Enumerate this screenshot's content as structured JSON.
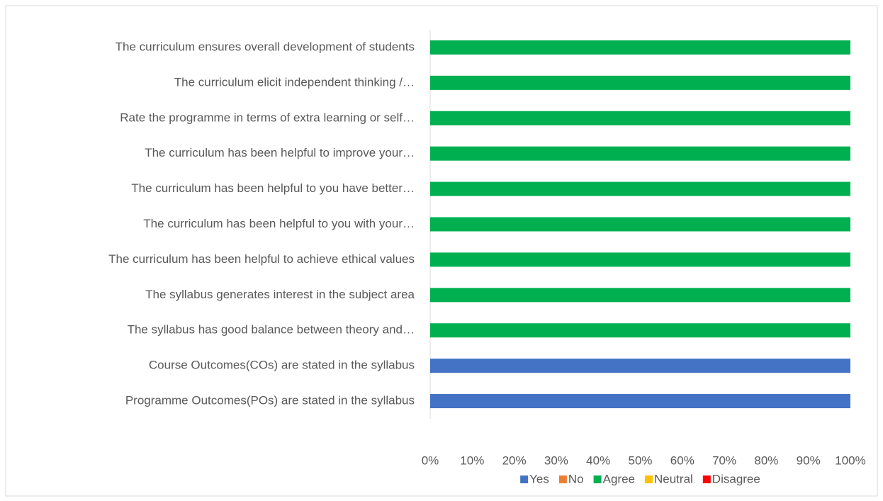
{
  "chart_data": {
    "type": "stacked_bar_horizontal_percent",
    "categories": [
      "The curriculum ensures overall development of students",
      "The curriculum elicit independent thinking /…",
      "Rate the programme in terms of extra learning or self…",
      "The curriculum has been helpful to improve your…",
      "The curriculum has been helpful to you have better…",
      "The curriculum has been helpful to you with your…",
      "The curriculum has been helpful to achieve ethical values",
      "The syllabus generates interest in the subject area",
      "The syllabus has good balance between theory and…",
      "Course Outcomes(COs) are stated in the syllabus",
      "Programme Outcomes(POs) are stated in the syllabus"
    ],
    "series": [
      {
        "name": "Yes",
        "color": "#4472c4",
        "values": [
          0,
          0,
          0,
          0,
          0,
          0,
          0,
          0,
          0,
          100,
          100
        ]
      },
      {
        "name": "No",
        "color": "#ed7d31",
        "values": [
          0,
          0,
          0,
          0,
          0,
          0,
          0,
          0,
          0,
          0,
          0
        ]
      },
      {
        "name": "Agree",
        "color": "#00b050",
        "values": [
          100,
          100,
          100,
          100,
          100,
          100,
          100,
          100,
          100,
          0,
          0
        ]
      },
      {
        "name": "Neutral",
        "color": "#ffc000",
        "values": [
          0,
          0,
          0,
          0,
          0,
          0,
          0,
          0,
          0,
          0,
          0
        ]
      },
      {
        "name": "Disagree",
        "color": "#ff0000",
        "values": [
          0,
          0,
          0,
          0,
          0,
          0,
          0,
          0,
          0,
          0,
          0
        ]
      }
    ],
    "xlim": [
      0,
      100
    ],
    "xticks": [
      {
        "value": 0,
        "label": "0%"
      },
      {
        "value": 10,
        "label": "10%"
      },
      {
        "value": 20,
        "label": "20%"
      },
      {
        "value": 30,
        "label": "30%"
      },
      {
        "value": 40,
        "label": "40%"
      },
      {
        "value": 50,
        "label": "50%"
      },
      {
        "value": 60,
        "label": "60%"
      },
      {
        "value": 70,
        "label": "70%"
      },
      {
        "value": 80,
        "label": "80%"
      },
      {
        "value": 90,
        "label": "90%"
      },
      {
        "value": 100,
        "label": "100%"
      }
    ],
    "legend": "bottom"
  }
}
